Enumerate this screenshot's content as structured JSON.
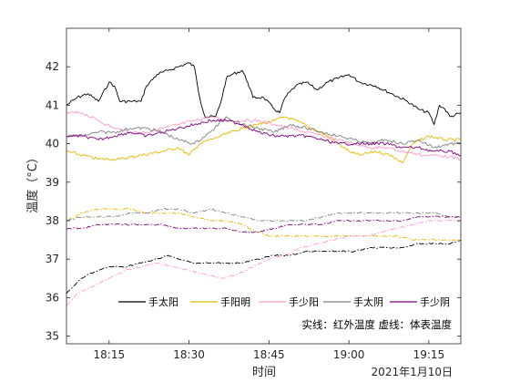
{
  "chart_data": {
    "type": "line",
    "xlabel": "时间",
    "ylabel": "温度（°C）",
    "date_label": "2021年1月10日",
    "note": "实线：红外温度 虚线：体表温度",
    "x_range": [
      "18:07",
      "19:21"
    ],
    "ylim": [
      34.8,
      43.0
    ],
    "x_ticks": [
      "18:15",
      "18:30",
      "18:45",
      "19:00",
      "19:15"
    ],
    "y_ticks": [
      35,
      36,
      37,
      38,
      39,
      40,
      41,
      42
    ],
    "grid": false,
    "legend_position": "bottom-right",
    "colors": {
      "taiyang": "#000000",
      "yangming": "#e8b800",
      "shaoyang": "#ff99cc",
      "taiyin": "#808080",
      "shaoyin": "#800080"
    },
    "series": [
      {
        "name": "手太阳",
        "kind": "infrared",
        "color_key": "taiyang",
        "dashed": false,
        "points": [
          [
            "18:07",
            41.0
          ],
          [
            "18:09",
            41.2
          ],
          [
            "18:11",
            41.3
          ],
          [
            "18:13",
            41.1
          ],
          [
            "18:15",
            41.6
          ],
          [
            "18:16",
            41.5
          ],
          [
            "18:17",
            41.1
          ],
          [
            "18:19",
            41.1
          ],
          [
            "18:21",
            41.1
          ],
          [
            "18:22",
            41.5
          ],
          [
            "18:24",
            41.8
          ],
          [
            "18:26",
            41.9
          ],
          [
            "18:28",
            42.0
          ],
          [
            "18:30",
            42.1
          ],
          [
            "18:31",
            42.0
          ],
          [
            "18:32",
            41.2
          ],
          [
            "18:33",
            40.7
          ],
          [
            "18:35",
            40.7
          ],
          [
            "18:36",
            41.1
          ],
          [
            "18:37",
            41.7
          ],
          [
            "18:38",
            41.8
          ],
          [
            "18:40",
            41.9
          ],
          [
            "18:41",
            41.6
          ],
          [
            "18:42",
            41.2
          ],
          [
            "18:44",
            41.2
          ],
          [
            "18:46",
            40.9
          ],
          [
            "18:47",
            40.8
          ],
          [
            "18:48",
            41.2
          ],
          [
            "18:50",
            41.5
          ],
          [
            "18:52",
            41.6
          ],
          [
            "18:54",
            41.4
          ],
          [
            "18:56",
            41.6
          ],
          [
            "18:58",
            41.7
          ],
          [
            "19:00",
            41.8
          ],
          [
            "19:02",
            41.6
          ],
          [
            "19:05",
            41.5
          ],
          [
            "19:08",
            41.3
          ],
          [
            "19:11",
            41.1
          ],
          [
            "19:13",
            40.9
          ],
          [
            "19:15",
            40.8
          ],
          [
            "19:16",
            40.5
          ],
          [
            "19:17",
            41.0
          ],
          [
            "19:18",
            40.9
          ],
          [
            "19:19",
            40.7
          ],
          [
            "19:21",
            40.8
          ]
        ]
      },
      {
        "name": "手阳明",
        "kind": "infrared",
        "color_key": "yangming",
        "dashed": false,
        "points": [
          [
            "18:07",
            39.8
          ],
          [
            "18:10",
            39.7
          ],
          [
            "18:13",
            39.6
          ],
          [
            "18:17",
            39.6
          ],
          [
            "18:21",
            39.7
          ],
          [
            "18:25",
            39.8
          ],
          [
            "18:28",
            39.9
          ],
          [
            "18:30",
            39.7
          ],
          [
            "18:32",
            40.0
          ],
          [
            "18:36",
            40.2
          ],
          [
            "18:40",
            40.4
          ],
          [
            "18:43",
            40.5
          ],
          [
            "18:46",
            40.6
          ],
          [
            "18:48",
            40.7
          ],
          [
            "18:50",
            40.6
          ],
          [
            "18:53",
            40.4
          ],
          [
            "18:56",
            40.2
          ],
          [
            "18:58",
            40.0
          ],
          [
            "19:00",
            39.8
          ],
          [
            "19:02",
            39.7
          ],
          [
            "19:05",
            39.8
          ],
          [
            "19:08",
            39.7
          ],
          [
            "19:10",
            39.5
          ],
          [
            "19:12",
            40.0
          ],
          [
            "19:15",
            40.2
          ],
          [
            "19:18",
            40.1
          ],
          [
            "19:21",
            40.1
          ]
        ]
      },
      {
        "name": "手少阳",
        "kind": "infrared",
        "color_key": "shaoyang",
        "dashed": false,
        "points": [
          [
            "18:07",
            40.8
          ],
          [
            "18:10",
            40.8
          ],
          [
            "18:13",
            40.6
          ],
          [
            "18:16",
            40.4
          ],
          [
            "18:19",
            40.3
          ],
          [
            "18:22",
            40.3
          ],
          [
            "18:25",
            40.4
          ],
          [
            "18:28",
            40.5
          ],
          [
            "18:31",
            40.6
          ],
          [
            "18:34",
            40.7
          ],
          [
            "18:37",
            40.6
          ],
          [
            "18:40",
            40.6
          ],
          [
            "18:43",
            40.6
          ],
          [
            "18:46",
            40.5
          ],
          [
            "18:49",
            40.4
          ],
          [
            "18:52",
            40.3
          ],
          [
            "18:55",
            40.2
          ],
          [
            "18:58",
            40.1
          ],
          [
            "19:01",
            40.0
          ],
          [
            "19:04",
            39.9
          ],
          [
            "19:07",
            39.9
          ],
          [
            "19:10",
            39.8
          ],
          [
            "19:14",
            39.7
          ],
          [
            "19:17",
            39.7
          ],
          [
            "19:21",
            39.6
          ]
        ]
      },
      {
        "name": "手太阴",
        "kind": "infrared",
        "color_key": "taiyin",
        "dashed": false,
        "points": [
          [
            "18:07",
            40.2
          ],
          [
            "18:10",
            40.2
          ],
          [
            "18:13",
            40.3
          ],
          [
            "18:16",
            40.3
          ],
          [
            "18:19",
            40.4
          ],
          [
            "18:22",
            40.4
          ],
          [
            "18:25",
            40.3
          ],
          [
            "18:28",
            40.1
          ],
          [
            "18:31",
            40.0
          ],
          [
            "18:34",
            40.3
          ],
          [
            "18:37",
            40.7
          ],
          [
            "18:40",
            40.5
          ],
          [
            "18:43",
            40.4
          ],
          [
            "18:46",
            40.3
          ],
          [
            "18:49",
            40.5
          ],
          [
            "18:52",
            40.4
          ],
          [
            "18:55",
            40.3
          ],
          [
            "18:58",
            40.2
          ],
          [
            "19:01",
            40.1
          ],
          [
            "19:04",
            40.0
          ],
          [
            "19:07",
            40.1
          ],
          [
            "19:10",
            40.0
          ],
          [
            "19:13",
            40.1
          ],
          [
            "19:16",
            39.9
          ],
          [
            "19:19",
            40.0
          ],
          [
            "19:21",
            40.0
          ]
        ]
      },
      {
        "name": "手少阴",
        "kind": "infrared",
        "color_key": "shaoyin",
        "dashed": false,
        "points": [
          [
            "18:07",
            40.2
          ],
          [
            "18:10",
            40.2
          ],
          [
            "18:13",
            40.1
          ],
          [
            "18:16",
            40.2
          ],
          [
            "18:19",
            40.3
          ],
          [
            "18:22",
            40.2
          ],
          [
            "18:25",
            40.3
          ],
          [
            "18:28",
            40.4
          ],
          [
            "18:31",
            40.5
          ],
          [
            "18:34",
            40.6
          ],
          [
            "18:37",
            40.6
          ],
          [
            "18:40",
            40.5
          ],
          [
            "18:43",
            40.3
          ],
          [
            "18:46",
            40.2
          ],
          [
            "18:49",
            40.2
          ],
          [
            "18:52",
            40.2
          ],
          [
            "18:55",
            40.1
          ],
          [
            "18:58",
            40.0
          ],
          [
            "19:01",
            40.0
          ],
          [
            "19:04",
            40.0
          ],
          [
            "19:07",
            40.0
          ],
          [
            "19:10",
            39.9
          ],
          [
            "19:13",
            39.9
          ],
          [
            "19:16",
            39.8
          ],
          [
            "19:19",
            39.8
          ],
          [
            "19:21",
            39.7
          ]
        ]
      },
      {
        "name": "",
        "kind": "surface",
        "color_key": "taiyang",
        "dashed": true,
        "points": [
          [
            "18:07",
            36.1
          ],
          [
            "18:09",
            36.4
          ],
          [
            "18:11",
            36.6
          ],
          [
            "18:13",
            36.7
          ],
          [
            "18:15",
            36.8
          ],
          [
            "18:18",
            36.8
          ],
          [
            "18:21",
            36.9
          ],
          [
            "18:24",
            37.0
          ],
          [
            "18:26",
            37.1
          ],
          [
            "18:28",
            37.0
          ],
          [
            "18:31",
            36.9
          ],
          [
            "18:34",
            36.9
          ],
          [
            "18:37",
            36.9
          ],
          [
            "18:40",
            36.9
          ],
          [
            "18:43",
            37.0
          ],
          [
            "18:46",
            37.1
          ],
          [
            "18:49",
            37.1
          ],
          [
            "18:52",
            37.2
          ],
          [
            "18:55",
            37.2
          ],
          [
            "18:58",
            37.2
          ],
          [
            "19:01",
            37.2
          ],
          [
            "19:04",
            37.3
          ],
          [
            "19:07",
            37.3
          ],
          [
            "19:10",
            37.3
          ],
          [
            "19:13",
            37.4
          ],
          [
            "19:16",
            37.4
          ],
          [
            "19:19",
            37.4
          ],
          [
            "19:21",
            37.5
          ]
        ]
      },
      {
        "name": "",
        "kind": "surface",
        "color_key": "yangming",
        "dashed": true,
        "points": [
          [
            "18:07",
            38.0
          ],
          [
            "18:10",
            38.2
          ],
          [
            "18:13",
            38.3
          ],
          [
            "18:16",
            38.3
          ],
          [
            "18:19",
            38.3
          ],
          [
            "18:22",
            38.2
          ],
          [
            "18:25",
            38.2
          ],
          [
            "18:28",
            38.2
          ],
          [
            "18:31",
            38.1
          ],
          [
            "18:34",
            38.0
          ],
          [
            "18:37",
            38.0
          ],
          [
            "18:40",
            37.9
          ],
          [
            "18:43",
            37.7
          ],
          [
            "18:45",
            37.6
          ],
          [
            "18:48",
            37.6
          ],
          [
            "18:51",
            37.6
          ],
          [
            "18:54",
            37.6
          ],
          [
            "18:57",
            37.6
          ],
          [
            "19:00",
            37.6
          ],
          [
            "19:03",
            37.6
          ],
          [
            "19:06",
            37.6
          ],
          [
            "19:09",
            37.6
          ],
          [
            "19:12",
            37.5
          ],
          [
            "19:15",
            37.5
          ],
          [
            "19:18",
            37.5
          ],
          [
            "19:21",
            37.5
          ]
        ]
      },
      {
        "name": "",
        "kind": "surface",
        "color_key": "shaoyang",
        "dashed": true,
        "points": [
          [
            "18:07",
            35.8
          ],
          [
            "18:09",
            36.1
          ],
          [
            "18:12",
            36.3
          ],
          [
            "18:15",
            36.5
          ],
          [
            "18:18",
            36.7
          ],
          [
            "18:21",
            36.8
          ],
          [
            "18:24",
            36.9
          ],
          [
            "18:27",
            36.8
          ],
          [
            "18:30",
            36.7
          ],
          [
            "18:33",
            36.6
          ],
          [
            "18:36",
            36.5
          ],
          [
            "18:39",
            36.6
          ],
          [
            "18:42",
            36.8
          ],
          [
            "18:45",
            37.0
          ],
          [
            "18:48",
            37.1
          ],
          [
            "18:51",
            37.3
          ],
          [
            "18:54",
            37.4
          ],
          [
            "18:57",
            37.5
          ],
          [
            "19:00",
            37.6
          ],
          [
            "19:03",
            37.6
          ],
          [
            "19:06",
            37.7
          ],
          [
            "19:09",
            37.8
          ],
          [
            "19:12",
            37.9
          ],
          [
            "19:15",
            38.0
          ],
          [
            "19:18",
            38.0
          ],
          [
            "19:21",
            38.0
          ]
        ]
      },
      {
        "name": "",
        "kind": "surface",
        "color_key": "taiyin",
        "dashed": true,
        "points": [
          [
            "18:07",
            38.0
          ],
          [
            "18:10",
            38.1
          ],
          [
            "18:13",
            38.1
          ],
          [
            "18:16",
            38.1
          ],
          [
            "18:19",
            38.2
          ],
          [
            "18:22",
            38.2
          ],
          [
            "18:25",
            38.3
          ],
          [
            "18:28",
            38.3
          ],
          [
            "18:31",
            38.2
          ],
          [
            "18:34",
            38.3
          ],
          [
            "18:37",
            38.2
          ],
          [
            "18:40",
            38.1
          ],
          [
            "18:43",
            38.0
          ],
          [
            "18:46",
            38.0
          ],
          [
            "18:49",
            38.0
          ],
          [
            "18:52",
            38.0
          ],
          [
            "18:55",
            38.1
          ],
          [
            "18:58",
            38.2
          ],
          [
            "19:01",
            38.2
          ],
          [
            "19:04",
            38.2
          ],
          [
            "19:07",
            38.2
          ],
          [
            "19:10",
            38.2
          ],
          [
            "19:13",
            38.2
          ],
          [
            "19:16",
            38.2
          ],
          [
            "19:19",
            38.1
          ],
          [
            "19:21",
            38.1
          ]
        ]
      },
      {
        "name": "",
        "kind": "surface",
        "color_key": "shaoyin",
        "dashed": true,
        "points": [
          [
            "18:07",
            37.8
          ],
          [
            "18:10",
            37.8
          ],
          [
            "18:13",
            37.9
          ],
          [
            "18:16",
            37.9
          ],
          [
            "18:19",
            37.9
          ],
          [
            "18:22",
            37.9
          ],
          [
            "18:25",
            37.9
          ],
          [
            "18:28",
            37.8
          ],
          [
            "18:31",
            37.8
          ],
          [
            "18:34",
            37.8
          ],
          [
            "18:37",
            37.8
          ],
          [
            "18:40",
            37.7
          ],
          [
            "18:43",
            37.7
          ],
          [
            "18:46",
            37.8
          ],
          [
            "18:49",
            37.9
          ],
          [
            "18:52",
            37.9
          ],
          [
            "18:55",
            37.9
          ],
          [
            "18:58",
            38.0
          ],
          [
            "19:01",
            38.0
          ],
          [
            "19:04",
            38.0
          ],
          [
            "19:07",
            38.0
          ],
          [
            "19:10",
            38.0
          ],
          [
            "19:13",
            38.1
          ],
          [
            "19:16",
            38.1
          ],
          [
            "19:19",
            38.1
          ],
          [
            "19:21",
            38.1
          ]
        ]
      }
    ]
  }
}
